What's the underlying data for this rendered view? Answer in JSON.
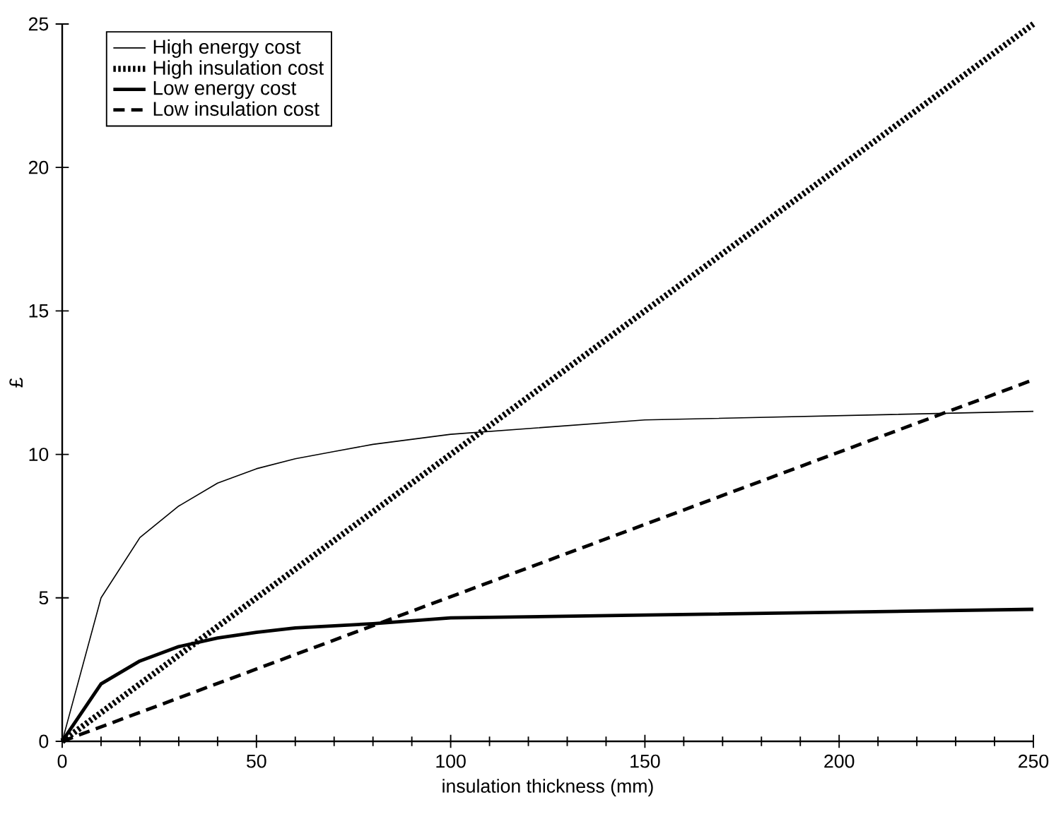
{
  "chart_data": {
    "type": "line",
    "xlabel": "insulation thickness (mm)",
    "ylabel": "£",
    "xlim": [
      0,
      250
    ],
    "ylim": [
      0,
      25
    ],
    "xticks": [
      0,
      50,
      100,
      150,
      200,
      250
    ],
    "yticks": [
      0,
      5,
      10,
      15,
      20,
      25
    ],
    "legend": "top left",
    "grid": false,
    "marker": "none",
    "series": [
      {
        "name": "High energy cost",
        "color": "#000000",
        "line_style": "solid",
        "x": [
          0,
          10,
          20,
          30,
          40,
          50,
          60,
          70,
          80,
          100,
          150,
          200,
          250
        ],
        "values": [
          0,
          5.0,
          7.1,
          8.2,
          9.0,
          9.5,
          9.85,
          10.1,
          10.35,
          10.7,
          11.2,
          11.35,
          11.5
        ]
      },
      {
        "name": "High insulation cost",
        "color": "#000000",
        "line_style": "dotted",
        "x": [
          0,
          250
        ],
        "values": [
          0,
          25
        ]
      },
      {
        "name": "Low energy cost",
        "color": "#000000",
        "line_style": "solid",
        "x": [
          0,
          10,
          20,
          30,
          40,
          50,
          60,
          80,
          100,
          150,
          200,
          250
        ],
        "values": [
          0,
          2.0,
          2.8,
          3.3,
          3.6,
          3.8,
          3.95,
          4.1,
          4.3,
          4.4,
          4.5,
          4.6
        ]
      },
      {
        "name": "Low insulation cost",
        "color": "#000000",
        "line_style": "dashed",
        "x": [
          0,
          250
        ],
        "values": [
          0,
          12.6
        ]
      }
    ]
  }
}
